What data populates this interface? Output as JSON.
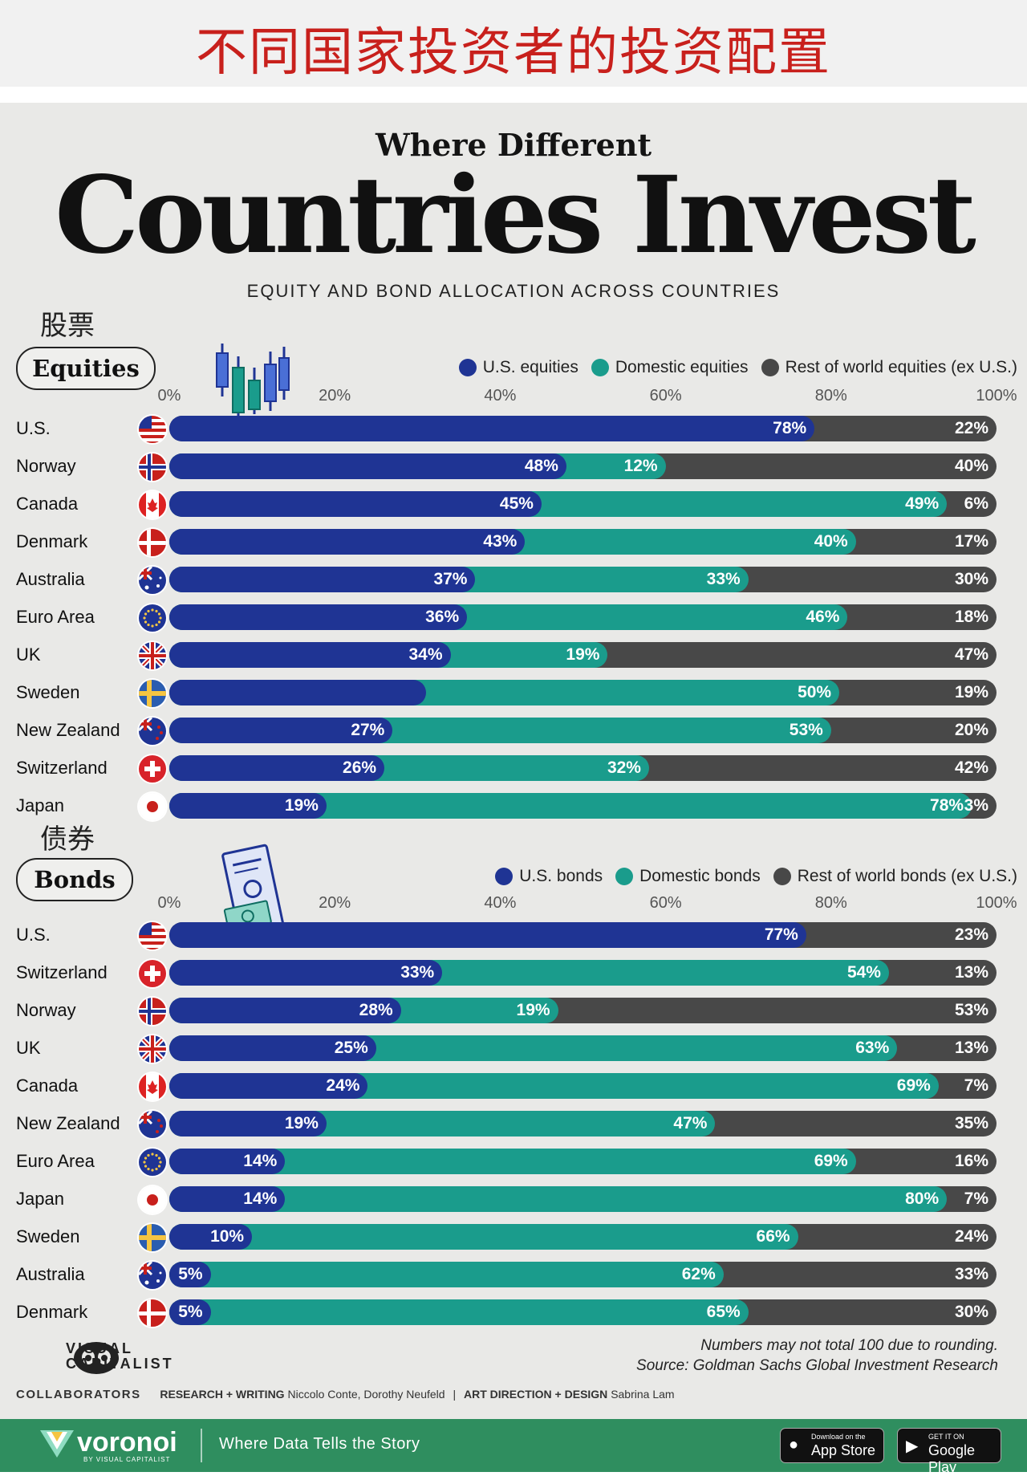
{
  "banner": {
    "cn_title": "不同国家投资者的投资配置"
  },
  "header": {
    "kicker": "Where Different",
    "title": "Countries Invest",
    "subtitle": "EQUITY AND BOND ALLOCATION ACROSS COUNTRIES"
  },
  "colors": {
    "us": "#1f3494",
    "domestic": "#1a9c8c",
    "rest": "#484848"
  },
  "axis_ticks": [
    "0%",
    "20%",
    "40%",
    "60%",
    "80%",
    "100%"
  ],
  "chart_data": [
    {
      "type": "bar",
      "stacked": true,
      "orientation": "horizontal",
      "cn_label": "股票",
      "title": "Equities",
      "legend": [
        "U.S. equities",
        "Domestic equities",
        "Rest of world equities (ex U.S.)"
      ],
      "xlim": [
        0,
        100
      ],
      "categories": [
        "U.S.",
        "Norway",
        "Canada",
        "Denmark",
        "Australia",
        "Euro Area",
        "UK",
        "Sweden",
        "New Zealand",
        "Switzerland",
        "Japan"
      ],
      "flags": [
        "flag-us",
        "flag-norway",
        "flag-canada",
        "flag-denmark",
        "flag-australia",
        "flag-euro",
        "flag-uk",
        "flag-sweden",
        "flag-new-zealand",
        "flag-switzerland",
        "flag-japan"
      ],
      "series": [
        {
          "name": "U.S. equities",
          "values": [
            78,
            48,
            45,
            43,
            37,
            36,
            34,
            31,
            27,
            26,
            19
          ],
          "labels": [
            "78%",
            "48%",
            "45%",
            "43%",
            "37%",
            "36%",
            "34%",
            "",
            "27%",
            "26%",
            "19%"
          ]
        },
        {
          "name": "Domestic equities",
          "values": [
            0,
            12,
            49,
            40,
            33,
            46,
            19,
            50,
            53,
            32,
            78
          ],
          "labels": [
            "",
            "12%",
            "49%",
            "40%",
            "33%",
            "46%",
            "19%",
            "50%",
            "53%",
            "32%",
            "78%"
          ]
        },
        {
          "name": "Rest of world equities (ex U.S.)",
          "values": [
            22,
            40,
            6,
            17,
            30,
            18,
            47,
            19,
            20,
            42,
            3
          ],
          "labels": [
            "22%",
            "40%",
            "6%",
            "17%",
            "30%",
            "18%",
            "47%",
            "19%",
            "20%",
            "42%",
            "3%"
          ]
        }
      ]
    },
    {
      "type": "bar",
      "stacked": true,
      "orientation": "horizontal",
      "cn_label": "债券",
      "title": "Bonds",
      "legend": [
        "U.S. bonds",
        "Domestic bonds",
        "Rest of world bonds (ex U.S.)"
      ],
      "xlim": [
        0,
        100
      ],
      "categories": [
        "U.S.",
        "Switzerland",
        "Norway",
        "UK",
        "Canada",
        "New Zealand",
        "Euro Area",
        "Japan",
        "Sweden",
        "Australia",
        "Denmark"
      ],
      "flags": [
        "flag-us",
        "flag-switzerland",
        "flag-norway",
        "flag-uk",
        "flag-canada",
        "flag-new-zealand",
        "flag-euro",
        "flag-japan",
        "flag-sweden",
        "flag-australia",
        "flag-denmark"
      ],
      "series": [
        {
          "name": "U.S. bonds",
          "values": [
            77,
            33,
            28,
            25,
            24,
            19,
            14,
            14,
            10,
            5,
            5
          ],
          "labels": [
            "77%",
            "33%",
            "28%",
            "25%",
            "24%",
            "19%",
            "14%",
            "14%",
            "10%",
            "5%",
            "5%"
          ]
        },
        {
          "name": "Domestic bonds",
          "values": [
            0,
            54,
            19,
            63,
            69,
            47,
            69,
            80,
            66,
            62,
            65
          ],
          "labels": [
            "",
            "54%",
            "19%",
            "63%",
            "69%",
            "47%",
            "69%",
            "80%",
            "66%",
            "62%",
            "65%"
          ]
        },
        {
          "name": "Rest of world bonds (ex U.S.)",
          "values": [
            23,
            13,
            53,
            13,
            7,
            35,
            16,
            7,
            24,
            33,
            30
          ],
          "labels": [
            "23%",
            "13%",
            "53%",
            "13%",
            "7%",
            "35%",
            "16%",
            "7%",
            "24%",
            "33%",
            "30%"
          ]
        }
      ]
    }
  ],
  "footer": {
    "note": "Numbers may not total 100 due to rounding.",
    "source": "Source: Goldman Sachs Global Investment Research",
    "logo_line1": "VISUAL",
    "logo_line2": "CAPITALIST",
    "collaborators_label": "COLLABORATORS",
    "research_label": "RESEARCH + WRITING",
    "research_names": "Niccolo Conte, Dorothy Neufeld",
    "design_label": "ART DIRECTION + DESIGN",
    "design_names": "Sabrina Lam",
    "brand": "voronoi",
    "brand_sub": "BY VISUAL CAPITALIST",
    "tagline": "Where Data Tells the Story",
    "appstore_small": "Download on the",
    "appstore_big": "App Store",
    "play_small": "GET IT ON",
    "play_big": "Google Play"
  }
}
